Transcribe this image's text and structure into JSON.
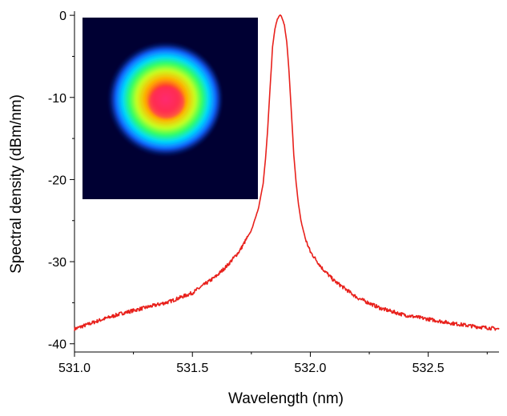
{
  "chart_data": {
    "type": "line",
    "title": "",
    "xlabel": "Wavelength (nm)",
    "ylabel": "Spectral density (dBm/nm)",
    "xlim": [
      531.0,
      532.8
    ],
    "ylim": [
      -41,
      0.5
    ],
    "xticks": [
      {
        "value": 531.0,
        "label": "531.0"
      },
      {
        "value": 531.5,
        "label": "531.5"
      },
      {
        "value": 532.0,
        "label": "532.0"
      },
      {
        "value": 532.5,
        "label": "532.5"
      }
    ],
    "yticks": [
      {
        "value": 0,
        "label": "0"
      },
      {
        "value": -10,
        "label": "-10"
      },
      {
        "value": -20,
        "label": "-20"
      },
      {
        "value": -30,
        "label": "-30"
      },
      {
        "value": -40,
        "label": "-40"
      }
    ],
    "grid": false,
    "legend": "none",
    "series": [
      {
        "name": "spectrum",
        "color": "#e8211c",
        "x": [
          531.0,
          531.1,
          531.2,
          531.3,
          531.4,
          531.5,
          531.6,
          531.65,
          531.7,
          531.75,
          531.78,
          531.8,
          531.81,
          531.82,
          531.83,
          531.84,
          531.85,
          531.86,
          531.87,
          531.875,
          531.88,
          531.89,
          531.9,
          531.91,
          531.92,
          531.93,
          531.94,
          531.95,
          531.96,
          531.98,
          532.0,
          532.05,
          532.1,
          532.2,
          532.3,
          532.4,
          532.5,
          532.6,
          532.7,
          532.8
        ],
        "y": [
          -38.2,
          -37.2,
          -36.3,
          -35.6,
          -34.9,
          -33.8,
          -31.8,
          -30.4,
          -28.7,
          -26.2,
          -23.5,
          -20.5,
          -17.5,
          -13.5,
          -8.5,
          -3.8,
          -1.6,
          -0.5,
          0,
          0,
          -0.3,
          -1.2,
          -3.2,
          -7.0,
          -12.0,
          -17.0,
          -20.5,
          -23.0,
          -25.0,
          -27.3,
          -28.8,
          -30.8,
          -32.3,
          -34.4,
          -35.7,
          -36.5,
          -37.0,
          -37.5,
          -37.9,
          -38.2
        ]
      }
    ],
    "inset": {
      "type": "heatmap",
      "colormap": "jet",
      "background": "#000033"
    }
  }
}
